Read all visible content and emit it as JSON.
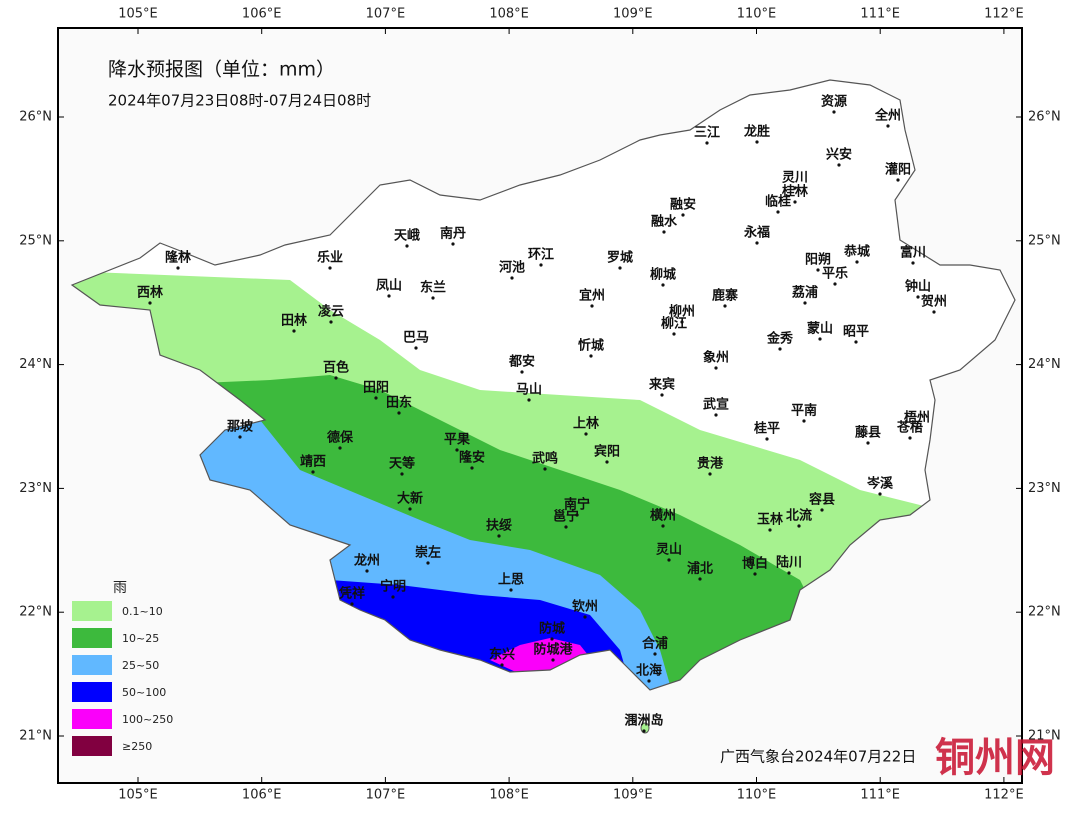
{
  "header": {
    "title": "降水预报图（单位：mm）",
    "subtitle": "2024年07月23日08时-07月24日08时"
  },
  "axes": {
    "lon": [
      "105°E",
      "106°E",
      "107°E",
      "108°E",
      "109°E",
      "110°E",
      "111°E",
      "112°E"
    ],
    "lat": [
      "26°N",
      "25°N",
      "24°N",
      "23°N",
      "22°N",
      "21°N"
    ]
  },
  "cities": [
    "隆林",
    "西林",
    "乐业",
    "天峨",
    "南丹",
    "环江",
    "河池",
    "罗城",
    "融水",
    "融安",
    "三江",
    "龙胜",
    "资源",
    "全州",
    "兴安",
    "灌阳",
    "灵川",
    "桂林",
    "临桂",
    "永福",
    "阳朔",
    "恭城",
    "富川",
    "平乐",
    "钟山",
    "贺州",
    "荔浦",
    "鹿寨",
    "柳城",
    "宜州",
    "柳州",
    "柳江",
    "凤山",
    "东兰",
    "凌云",
    "田林",
    "巴马",
    "都安",
    "忻城",
    "象州",
    "金秀",
    "蒙山",
    "昭平",
    "百色",
    "田阳",
    "田东",
    "马山",
    "来宾",
    "武宣",
    "平南",
    "藤县",
    "梧州",
    "苍梧",
    "那坡",
    "德保",
    "平果",
    "隆安",
    "上林",
    "宾阳",
    "武鸣",
    "桂平",
    "贵港",
    "靖西",
    "天等",
    "岑溪",
    "大新",
    "南宁",
    "邕宁",
    "扶绥",
    "横州",
    "容县",
    "玉林",
    "北流",
    "灵山",
    "龙州",
    "崇左",
    "宁明",
    "凭祥",
    "上思",
    "浦北",
    "博白",
    "陆川",
    "钦州",
    "防城",
    "合浦",
    "东兴",
    "防城港",
    "北海",
    "涠洲岛"
  ],
  "legend": {
    "title": "雨",
    "items": [
      {
        "label": "0.1~10",
        "color": "#a6f28f"
      },
      {
        "label": "10~25",
        "color": "#3dba3d"
      },
      {
        "label": "25~50",
        "color": "#61b8ff"
      },
      {
        "label": "50~100",
        "color": "#0000fe"
      },
      {
        "label": "100~250",
        "color": "#fa00fa"
      },
      {
        "label": "≥250",
        "color": "#810040"
      }
    ]
  },
  "footer": "广西气象台2024年07月22日",
  "watermark": "铜州网"
}
